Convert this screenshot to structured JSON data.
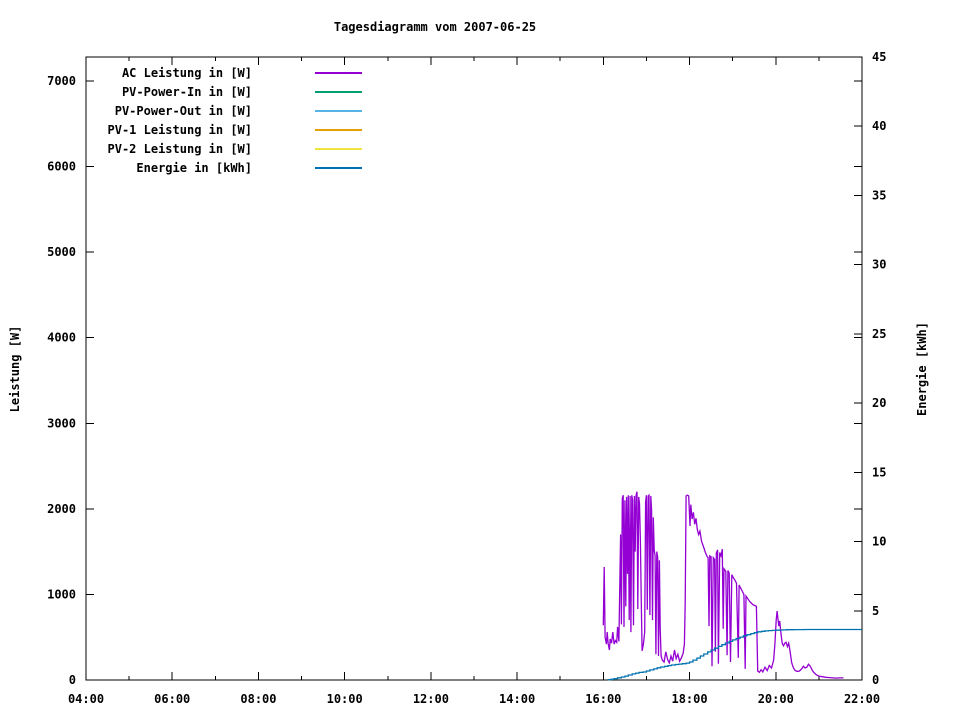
{
  "window": {
    "background": "#ffffff",
    "foreground": "#000000"
  },
  "chart_data": {
    "type": "line",
    "title": "Tagesdiagramm vom 2007-06-25",
    "grid": false,
    "legend_position": "top-left-inside",
    "x": {
      "min_hour": 4,
      "max_hour": 22,
      "major_ticks": [
        {
          "hour": 4,
          "label": "04:00"
        },
        {
          "hour": 6,
          "label": "06:00"
        },
        {
          "hour": 8,
          "label": "08:00"
        },
        {
          "hour": 10,
          "label": "10:00"
        },
        {
          "hour": 12,
          "label": "12:00"
        },
        {
          "hour": 14,
          "label": "14:00"
        },
        {
          "hour": 16,
          "label": "16:00"
        },
        {
          "hour": 18,
          "label": "18:00"
        },
        {
          "hour": 20,
          "label": "20:00"
        },
        {
          "hour": 22,
          "label": "22:00"
        }
      ],
      "minor_tick_hours": [
        5,
        7,
        9,
        11,
        13,
        15,
        17,
        19,
        21
      ]
    },
    "y1": {
      "label": "Leistung [W]",
      "min": 0,
      "max": 7280,
      "ticks": [
        0,
        1000,
        2000,
        3000,
        4000,
        5000,
        6000,
        7000
      ]
    },
    "y2": {
      "label": "Energie [kWh]",
      "min": 0,
      "max": 45,
      "ticks": [
        0,
        5,
        10,
        15,
        20,
        25,
        30,
        35,
        40,
        45
      ]
    },
    "series": [
      {
        "name": "AC Leistung in [W]",
        "color": "#9400D3",
        "axis": "y1",
        "style": "line",
        "points": [
          [
            16.0,
            640
          ],
          [
            16.02,
            1320
          ],
          [
            16.04,
            500
          ],
          [
            16.07,
            420
          ],
          [
            16.09,
            560
          ],
          [
            16.11,
            430
          ],
          [
            16.14,
            350
          ],
          [
            16.16,
            480
          ],
          [
            16.19,
            430
          ],
          [
            16.22,
            560
          ],
          [
            16.25,
            420
          ],
          [
            16.28,
            460
          ],
          [
            16.31,
            440
          ],
          [
            16.33,
            620
          ],
          [
            16.36,
            450
          ],
          [
            16.4,
            1700
          ],
          [
            16.42,
            650
          ],
          [
            16.44,
            2120
          ],
          [
            16.46,
            2160
          ],
          [
            16.48,
            620
          ],
          [
            16.5,
            2100
          ],
          [
            16.52,
            860
          ],
          [
            16.54,
            2140
          ],
          [
            16.56,
            1240
          ],
          [
            16.58,
            2160
          ],
          [
            16.6,
            700
          ],
          [
            16.62,
            2150
          ],
          [
            16.64,
            560
          ],
          [
            16.66,
            2160
          ],
          [
            16.68,
            2100
          ],
          [
            16.7,
            640
          ],
          [
            16.72,
            2150
          ],
          [
            16.74,
            1500
          ],
          [
            16.76,
            2160
          ],
          [
            16.78,
            2200
          ],
          [
            16.8,
            830
          ],
          [
            16.82,
            2140
          ],
          [
            16.84,
            2060
          ],
          [
            16.86,
            1620
          ],
          [
            16.88,
            900
          ],
          [
            16.9,
            340
          ],
          [
            16.93,
            420
          ],
          [
            16.96,
            560
          ],
          [
            16.98,
            2080
          ],
          [
            17.0,
            2160
          ],
          [
            17.02,
            820
          ],
          [
            17.04,
            2150
          ],
          [
            17.06,
            2160
          ],
          [
            17.08,
            760
          ],
          [
            17.1,
            2150
          ],
          [
            17.12,
            1980
          ],
          [
            17.14,
            700
          ],
          [
            17.16,
            1900
          ],
          [
            17.18,
            1520
          ],
          [
            17.2,
            1450
          ],
          [
            17.22,
            300
          ],
          [
            17.24,
            1500
          ],
          [
            17.26,
            1430
          ],
          [
            17.28,
            280
          ],
          [
            17.3,
            1400
          ],
          [
            17.32,
            600
          ],
          [
            17.34,
            280
          ],
          [
            17.37,
            230
          ],
          [
            17.41,
            210
          ],
          [
            17.45,
            330
          ],
          [
            17.49,
            240
          ],
          [
            17.53,
            200
          ],
          [
            17.57,
            280
          ],
          [
            17.61,
            220
          ],
          [
            17.65,
            350
          ],
          [
            17.69,
            250
          ],
          [
            17.73,
            300
          ],
          [
            17.77,
            220
          ],
          [
            17.81,
            260
          ],
          [
            17.85,
            310
          ],
          [
            17.88,
            420
          ],
          [
            17.9,
            900
          ],
          [
            17.92,
            2150
          ],
          [
            17.95,
            2160
          ],
          [
            17.98,
            2150
          ],
          [
            18.01,
            1800
          ],
          [
            18.03,
            2050
          ],
          [
            18.06,
            1880
          ],
          [
            18.09,
            1960
          ],
          [
            18.12,
            1820
          ],
          [
            18.15,
            1890
          ],
          [
            18.18,
            1760
          ],
          [
            18.21,
            1700
          ],
          [
            18.24,
            1740
          ],
          [
            18.28,
            1620
          ],
          [
            18.32,
            1560
          ],
          [
            18.36,
            1500
          ],
          [
            18.4,
            1450
          ],
          [
            18.43,
            1430
          ],
          [
            18.45,
            630
          ],
          [
            18.47,
            1450
          ],
          [
            18.5,
            1440
          ],
          [
            18.52,
            160
          ],
          [
            18.55,
            1430
          ],
          [
            18.58,
            1410
          ],
          [
            18.6,
            330
          ],
          [
            18.62,
            1480
          ],
          [
            18.65,
            1520
          ],
          [
            18.67,
            190
          ],
          [
            18.7,
            1490
          ],
          [
            18.73,
            1450
          ],
          [
            18.76,
            1530
          ],
          [
            18.78,
            600
          ],
          [
            18.8,
            1300
          ],
          [
            18.84,
            1270
          ],
          [
            18.87,
            290
          ],
          [
            18.89,
            1280
          ],
          [
            18.92,
            1250
          ],
          [
            18.95,
            210
          ],
          [
            18.98,
            1230
          ],
          [
            19.01,
            1200
          ],
          [
            19.05,
            1170
          ],
          [
            19.09,
            1130
          ],
          [
            19.13,
            260
          ],
          [
            19.15,
            1110
          ],
          [
            19.18,
            1080
          ],
          [
            19.22,
            1040
          ],
          [
            19.26,
            1000
          ],
          [
            19.29,
            130
          ],
          [
            19.31,
            980
          ],
          [
            19.35,
            950
          ],
          [
            19.39,
            920
          ],
          [
            19.43,
            900
          ],
          [
            19.47,
            880
          ],
          [
            19.51,
            870
          ],
          [
            19.55,
            860
          ],
          [
            19.58,
            105
          ],
          [
            19.62,
            90
          ],
          [
            19.66,
            120
          ],
          [
            19.7,
            95
          ],
          [
            19.75,
            150
          ],
          [
            19.8,
            110
          ],
          [
            19.85,
            170
          ],
          [
            19.9,
            140
          ],
          [
            19.95,
            230
          ],
          [
            19.98,
            420
          ],
          [
            20.01,
            700
          ],
          [
            20.03,
            805
          ],
          [
            20.05,
            720
          ],
          [
            20.07,
            630
          ],
          [
            20.09,
            690
          ],
          [
            20.12,
            540
          ],
          [
            20.15,
            430
          ],
          [
            20.18,
            400
          ],
          [
            20.21,
            430
          ],
          [
            20.24,
            440
          ],
          [
            20.27,
            390
          ],
          [
            20.3,
            430
          ],
          [
            20.33,
            340
          ],
          [
            20.37,
            200
          ],
          [
            20.41,
            140
          ],
          [
            20.45,
            110
          ],
          [
            20.5,
            100
          ],
          [
            20.55,
            105
          ],
          [
            20.6,
            130
          ],
          [
            20.64,
            160
          ],
          [
            20.68,
            140
          ],
          [
            20.72,
            150
          ],
          [
            20.76,
            185
          ],
          [
            20.8,
            160
          ],
          [
            20.84,
            120
          ],
          [
            20.88,
            90
          ],
          [
            20.92,
            70
          ],
          [
            20.96,
            55
          ],
          [
            21.0,
            45
          ],
          [
            21.08,
            38
          ],
          [
            21.16,
            32
          ],
          [
            21.25,
            28
          ],
          [
            21.33,
            25
          ],
          [
            21.4,
            22
          ],
          [
            21.48,
            24
          ],
          [
            21.57,
            25
          ]
        ]
      },
      {
        "name": "PV-Power-In in [W]",
        "color": "#009E73",
        "axis": "y1",
        "style": "line",
        "points": []
      },
      {
        "name": "PV-Power-Out in [W]",
        "color": "#56B4E9",
        "axis": "y1",
        "style": "line",
        "points": []
      },
      {
        "name": "PV-1 Leistung in [W]",
        "color": "#E69F00",
        "axis": "y1",
        "style": "line",
        "points": []
      },
      {
        "name": "PV-2 Leistung in [W]",
        "color": "#F0E442",
        "axis": "y1",
        "style": "line",
        "points": []
      },
      {
        "name": "Energie in [kWh]",
        "color": "#0072B2",
        "axis": "y2",
        "style": "steps",
        "points": [
          [
            16.1,
            0.02
          ],
          [
            16.17,
            0.05
          ],
          [
            16.25,
            0.1
          ],
          [
            16.33,
            0.16
          ],
          [
            16.42,
            0.22
          ],
          [
            16.5,
            0.28
          ],
          [
            16.58,
            0.36
          ],
          [
            16.67,
            0.44
          ],
          [
            16.75,
            0.5
          ],
          [
            16.83,
            0.55
          ],
          [
            16.92,
            0.58
          ],
          [
            17.0,
            0.65
          ],
          [
            17.08,
            0.73
          ],
          [
            17.17,
            0.8
          ],
          [
            17.25,
            0.88
          ],
          [
            17.33,
            0.94
          ],
          [
            17.42,
            0.99
          ],
          [
            17.5,
            1.04
          ],
          [
            17.58,
            1.08
          ],
          [
            17.67,
            1.12
          ],
          [
            17.75,
            1.15
          ],
          [
            17.83,
            1.18
          ],
          [
            17.92,
            1.22
          ],
          [
            18.0,
            1.3
          ],
          [
            18.08,
            1.44
          ],
          [
            18.17,
            1.58
          ],
          [
            18.25,
            1.73
          ],
          [
            18.33,
            1.88
          ],
          [
            18.42,
            2.03
          ],
          [
            18.5,
            2.17
          ],
          [
            18.58,
            2.3
          ],
          [
            18.67,
            2.43
          ],
          [
            18.75,
            2.55
          ],
          [
            18.83,
            2.67
          ],
          [
            18.92,
            2.79
          ],
          [
            19.0,
            2.9
          ],
          [
            19.08,
            3.0
          ],
          [
            19.17,
            3.1
          ],
          [
            19.25,
            3.19
          ],
          [
            19.33,
            3.27
          ],
          [
            19.42,
            3.35
          ],
          [
            19.5,
            3.42
          ],
          [
            19.58,
            3.48
          ],
          [
            19.67,
            3.52
          ],
          [
            19.75,
            3.55
          ],
          [
            19.83,
            3.57
          ],
          [
            19.92,
            3.58
          ],
          [
            20.0,
            3.6
          ],
          [
            20.08,
            3.61
          ],
          [
            20.17,
            3.62
          ],
          [
            20.25,
            3.63
          ],
          [
            20.42,
            3.64
          ],
          [
            20.67,
            3.65
          ],
          [
            21.0,
            3.65
          ],
          [
            21.5,
            3.65
          ],
          [
            22.0,
            3.65
          ]
        ]
      }
    ]
  }
}
